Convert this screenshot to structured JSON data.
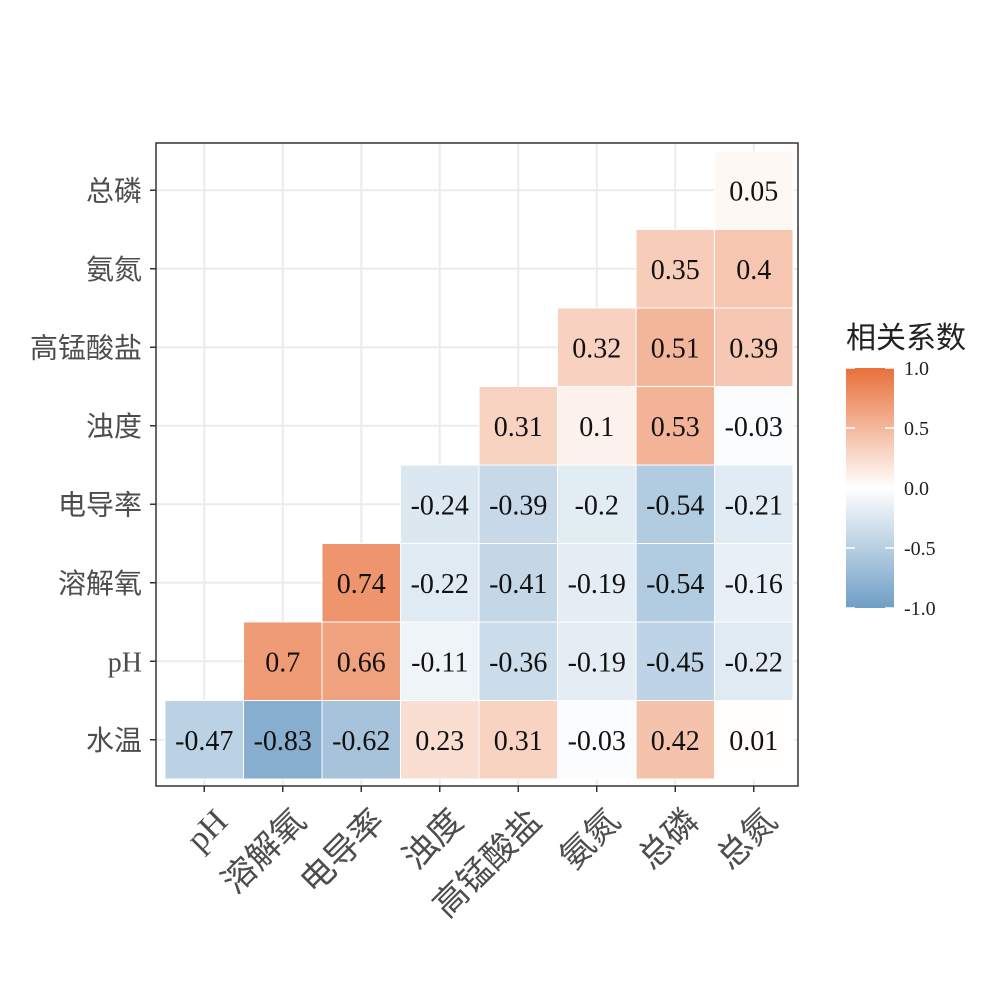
{
  "chart_data": {
    "type": "heatmap",
    "title": "",
    "xlabel": "",
    "ylabel": "",
    "x_categories": [
      "pH",
      "溶解氧",
      "电导率",
      "浊度",
      "高锰酸盐",
      "氨氮",
      "总磷",
      "总氮"
    ],
    "y_categories": [
      "水温",
      "pH",
      "溶解氧",
      "电导率",
      "浊度",
      "高锰酸盐",
      "氨氮",
      "总磷"
    ],
    "cells": [
      {
        "x": "pH",
        "y": "水温",
        "value": -0.47
      },
      {
        "x": "溶解氧",
        "y": "水温",
        "value": -0.83
      },
      {
        "x": "电导率",
        "y": "水温",
        "value": -0.62
      },
      {
        "x": "浊度",
        "y": "水温",
        "value": 0.23
      },
      {
        "x": "高锰酸盐",
        "y": "水温",
        "value": 0.31
      },
      {
        "x": "氨氮",
        "y": "水温",
        "value": -0.03
      },
      {
        "x": "总磷",
        "y": "水温",
        "value": 0.42
      },
      {
        "x": "总氮",
        "y": "水温",
        "value": 0.01
      },
      {
        "x": "溶解氧",
        "y": "pH",
        "value": 0.7
      },
      {
        "x": "电导率",
        "y": "pH",
        "value": 0.66
      },
      {
        "x": "浊度",
        "y": "pH",
        "value": -0.11
      },
      {
        "x": "高锰酸盐",
        "y": "pH",
        "value": -0.36
      },
      {
        "x": "氨氮",
        "y": "pH",
        "value": -0.19
      },
      {
        "x": "总磷",
        "y": "pH",
        "value": -0.45
      },
      {
        "x": "总氮",
        "y": "pH",
        "value": -0.22
      },
      {
        "x": "电导率",
        "y": "溶解氧",
        "value": 0.74
      },
      {
        "x": "浊度",
        "y": "溶解氧",
        "value": -0.22
      },
      {
        "x": "高锰酸盐",
        "y": "溶解氧",
        "value": -0.41
      },
      {
        "x": "氨氮",
        "y": "溶解氧",
        "value": -0.19
      },
      {
        "x": "总磷",
        "y": "溶解氧",
        "value": -0.54
      },
      {
        "x": "总氮",
        "y": "溶解氧",
        "value": -0.16
      },
      {
        "x": "浊度",
        "y": "电导率",
        "value": -0.24
      },
      {
        "x": "高锰酸盐",
        "y": "电导率",
        "value": -0.39
      },
      {
        "x": "氨氮",
        "y": "电导率",
        "value": -0.2
      },
      {
        "x": "总磷",
        "y": "电导率",
        "value": -0.54
      },
      {
        "x": "总氮",
        "y": "电导率",
        "value": -0.21
      },
      {
        "x": "高锰酸盐",
        "y": "浊度",
        "value": 0.31
      },
      {
        "x": "氨氮",
        "y": "浊度",
        "value": 0.1
      },
      {
        "x": "总磷",
        "y": "浊度",
        "value": 0.53
      },
      {
        "x": "总氮",
        "y": "浊度",
        "value": -0.03
      },
      {
        "x": "氨氮",
        "y": "高锰酸盐",
        "value": 0.32
      },
      {
        "x": "总磷",
        "y": "高锰酸盐",
        "value": 0.51
      },
      {
        "x": "总氮",
        "y": "高锰酸盐",
        "value": 0.39
      },
      {
        "x": "总磷",
        "y": "氨氮",
        "value": 0.35
      },
      {
        "x": "总氮",
        "y": "氨氮",
        "value": 0.4
      },
      {
        "x": "总氮",
        "y": "总磷",
        "value": 0.05
      }
    ],
    "color_scale": {
      "low": "#6f9ec5",
      "mid": "#ffffff",
      "high": "#e8703a",
      "limits": [
        -1.0,
        1.0
      ]
    },
    "legend": {
      "title": "相关系数",
      "ticks": [
        "1.0",
        "0.5",
        "0.0",
        "-0.5",
        "-1.0"
      ],
      "placement": "right"
    },
    "grid": true
  }
}
